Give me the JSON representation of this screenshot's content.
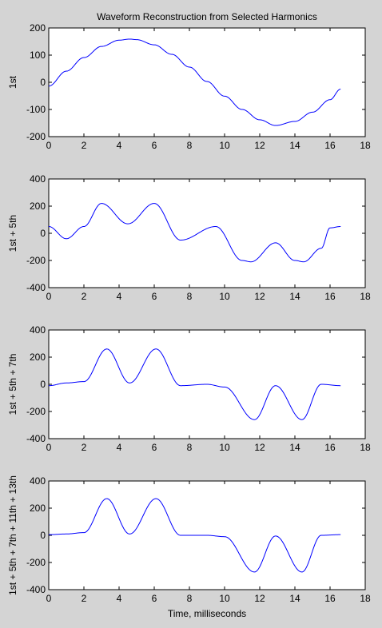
{
  "figure": {
    "title": "Waveform Reconstruction from Selected Harmonics",
    "xlabel": "Time, milliseconds",
    "background": "#d4d4d4",
    "line_color": "#0000ff"
  },
  "chart_data": [
    {
      "type": "line",
      "ylabel": "1st",
      "xlim": [
        0,
        18
      ],
      "ylim": [
        -200,
        200
      ],
      "xticks": [
        0,
        2,
        4,
        6,
        8,
        10,
        12,
        14,
        16,
        18
      ],
      "yticks": [
        -200,
        -100,
        0,
        100,
        200
      ],
      "grid": false,
      "series": [
        {
          "harmonics": [
            [
              1,
              160,
              0
            ]
          ],
          "x": [
            0,
            1,
            2,
            3,
            4,
            4.6,
            5,
            6,
            7,
            8,
            9,
            10,
            11,
            12,
            12.9,
            14,
            15,
            16,
            16.6
          ],
          "y": [
            -14,
            41,
            91,
            132,
            155,
            159,
            157,
            138,
            103,
            56,
            3,
            -51,
            -100,
            -138,
            -159,
            -144,
            -110,
            -64,
            -25
          ]
        }
      ]
    },
    {
      "type": "line",
      "ylabel": "1st + 5th",
      "xlim": [
        0,
        18
      ],
      "ylim": [
        -400,
        400
      ],
      "xticks": [
        0,
        2,
        4,
        6,
        8,
        10,
        12,
        14,
        16,
        18
      ],
      "yticks": [
        -400,
        -200,
        0,
        200,
        400
      ],
      "grid": false,
      "series": [
        {
          "harmonics": [
            [
              1,
              160,
              0
            ],
            [
              5,
              80,
              1
            ]
          ],
          "x": [
            0,
            1,
            2,
            3,
            4.5,
            6,
            7.5,
            9.5,
            11,
            11.5,
            12.9,
            14,
            14.5,
            15.5,
            16,
            16.6
          ],
          "y": [
            50,
            -40,
            50,
            220,
            70,
            220,
            -50,
            50,
            -200,
            -210,
            -70,
            -200,
            -210,
            -110,
            40,
            50
          ]
        }
      ]
    },
    {
      "type": "line",
      "ylabel": "1st + 5th + 7th",
      "xlim": [
        0,
        18
      ],
      "ylim": [
        -400,
        400
      ],
      "xticks": [
        0,
        2,
        4,
        6,
        8,
        10,
        12,
        14,
        16,
        18
      ],
      "yticks": [
        -400,
        -200,
        0,
        200,
        400
      ],
      "grid": false,
      "series": [
        {
          "harmonics": [
            [
              1,
              160,
              0
            ],
            [
              5,
              80,
              1
            ],
            [
              7,
              60,
              1
            ]
          ],
          "x": [
            0,
            1,
            2,
            3.3,
            4.6,
            6.1,
            7.5,
            9,
            10,
            11.7,
            12.9,
            14.4,
            15.5,
            16.6
          ],
          "y": [
            -10,
            10,
            20,
            260,
            10,
            260,
            -10,
            0,
            -20,
            -260,
            -10,
            -260,
            0,
            -10
          ]
        }
      ]
    },
    {
      "type": "line",
      "ylabel": "1st + 5th + 7th + 11th + 13th",
      "xlim": [
        0,
        18
      ],
      "ylim": [
        -400,
        400
      ],
      "xticks": [
        0,
        2,
        4,
        6,
        8,
        10,
        12,
        14,
        16,
        18
      ],
      "yticks": [
        -400,
        -200,
        0,
        200,
        400
      ],
      "grid": false,
      "series": [
        {
          "harmonics": [
            [
              1,
              160,
              0
            ],
            [
              5,
              80,
              1
            ],
            [
              7,
              60,
              1
            ],
            [
              11,
              8,
              0
            ],
            [
              13,
              8,
              0
            ]
          ],
          "x": [
            0,
            1,
            2,
            3.3,
            4.6,
            6.1,
            7.5,
            9,
            10,
            11.7,
            12.9,
            14.4,
            15.5,
            16.6
          ],
          "y": [
            5,
            10,
            20,
            270,
            10,
            270,
            0,
            0,
            -10,
            -270,
            -5,
            -270,
            0,
            5
          ]
        }
      ]
    }
  ]
}
